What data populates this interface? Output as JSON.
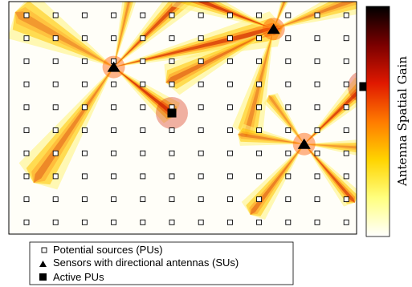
{
  "chart_data": {
    "type": "heatmap",
    "colorbar": {
      "label": "Antenna Spatial Gain",
      "colormap": [
        "#ffffff",
        "#ffff80",
        "#ffd400",
        "#ff7a00",
        "#e01800",
        "#7a0000",
        "#000000"
      ]
    },
    "grid": {
      "cols": 12,
      "rows": 10
    },
    "legend": {
      "placement": "bottom",
      "entries": [
        {
          "marker": "open-square",
          "label": "Potential sources (PUs)"
        },
        {
          "marker": "filled-triangle",
          "label": "Sensors with directional antennas (SUs)"
        },
        {
          "marker": "filled-square",
          "label": "Active PUs"
        }
      ]
    },
    "sensors": [
      {
        "col": 4,
        "row": 3.25
      },
      {
        "col": 9.5,
        "row": 1.6
      },
      {
        "col": 10.55,
        "row": 6.6
      }
    ],
    "active_pus": [
      {
        "col": 6,
        "row": 5.25
      },
      {
        "col": 12.6,
        "row": 4.1
      }
    ],
    "beams": [
      {
        "from": 0,
        "to": [
          6,
          5.25
        ],
        "width": 0.35,
        "strength": 1.0
      },
      {
        "from": 0,
        "to": [
          9.5,
          1.6
        ],
        "width": 0.22,
        "strength": 0.85
      },
      {
        "from": 0,
        "to": [
          6.6,
          0.0
        ],
        "width": 0.3,
        "strength": 0.8
      },
      {
        "from": 0,
        "to": [
          1.4,
          8.0
        ],
        "width": 0.35,
        "strength": 0.45
      },
      {
        "from": 0,
        "to": [
          0.8,
          1.0
        ],
        "width": 0.5,
        "strength": 0.35
      },
      {
        "from": 0,
        "to": [
          4.6,
          0.0
        ],
        "width": 0.2,
        "strength": 0.4
      },
      {
        "from": 1,
        "to": [
          6.2,
          0.0
        ],
        "width": 0.3,
        "strength": 0.95
      },
      {
        "from": 1,
        "to": [
          10.0,
          0.0
        ],
        "width": 0.25,
        "strength": 0.5
      },
      {
        "from": 1,
        "to": [
          6.0,
          3.8
        ],
        "width": 0.3,
        "strength": 0.55
      },
      {
        "from": 1,
        "to": [
          13.0,
          0.0
        ],
        "width": 0.35,
        "strength": 0.45
      },
      {
        "from": 1,
        "to": [
          8.6,
          6.0
        ],
        "width": 0.3,
        "strength": 0.4
      },
      {
        "from": 2,
        "to": [
          12.6,
          4.1
        ],
        "width": 0.3,
        "strength": 0.9
      },
      {
        "from": 2,
        "to": [
          12.2,
          9.0
        ],
        "width": 0.3,
        "strength": 0.8
      },
      {
        "from": 2,
        "to": [
          8.8,
          9.5
        ],
        "width": 0.35,
        "strength": 0.5
      },
      {
        "from": 2,
        "to": [
          8.4,
          6.2
        ],
        "width": 0.35,
        "strength": 0.45
      },
      {
        "from": 2,
        "to": [
          13.0,
          6.8
        ],
        "width": 0.3,
        "strength": 0.35
      },
      {
        "from": 2,
        "to": [
          9.4,
          4.6
        ],
        "width": 0.3,
        "strength": 0.35
      }
    ]
  }
}
